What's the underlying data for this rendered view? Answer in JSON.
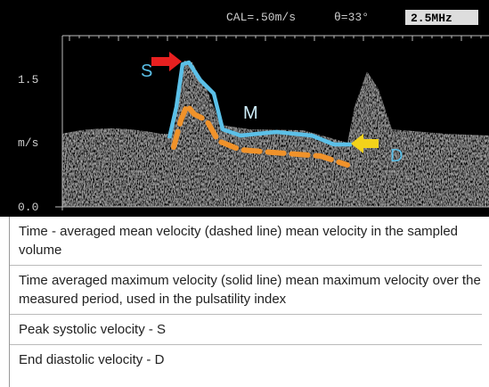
{
  "image": {
    "calibration": "CAL=.50m/s",
    "angle": "θ=33°",
    "frequency": "2.5MHz",
    "axis_labels": [
      "1.5",
      "m/s",
      "0.0"
    ],
    "markers": {
      "systolic": "S",
      "mean": "M",
      "diastolic": "D"
    }
  },
  "caption": {
    "items": [
      "Time - averaged mean velocity (dashed line) mean velocity in the sampled volume",
      "Time averaged maximum velocity (solid line) mean maximum velocity over the measured period, used in the pulsatility index",
      "Peak systolic velocity - S",
      "End diastolic velocity - D"
    ]
  }
}
